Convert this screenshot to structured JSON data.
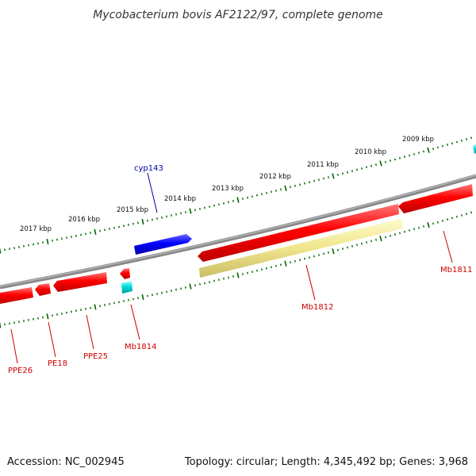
{
  "title": "Mycobacterium bovis AF2122/97, complete genome",
  "footer": {
    "accession": "Accession: NC_002945",
    "summary": "Topology: circular; Length: 4,345,492 bp; Genes: 3,968"
  },
  "scale_labels": [
    "2017 kbp",
    "2016 kbp",
    "2015 kbp",
    "2014 kbp",
    "2013 kbp",
    "2012 kbp",
    "2011 kbp",
    "2010 kbp",
    "2009 kbp"
  ],
  "gene_labels": {
    "cyp143": "cyp143",
    "mb1811": "Mb1811",
    "mb1812": "Mb1812",
    "mb1814": "Mb1814",
    "ppe25": "PPE25",
    "pe18": "PE18",
    "ppe26": "PPE26"
  },
  "colors": {
    "backbone": "#808080",
    "cds_reverse": "#ff0000",
    "cds_forward": "#0000ff",
    "trna": "#00cccc",
    "misc_feature": "#f0e68c",
    "tick": "#006400",
    "label_reverse": "#cc0000",
    "label_forward": "#0000aa"
  }
}
